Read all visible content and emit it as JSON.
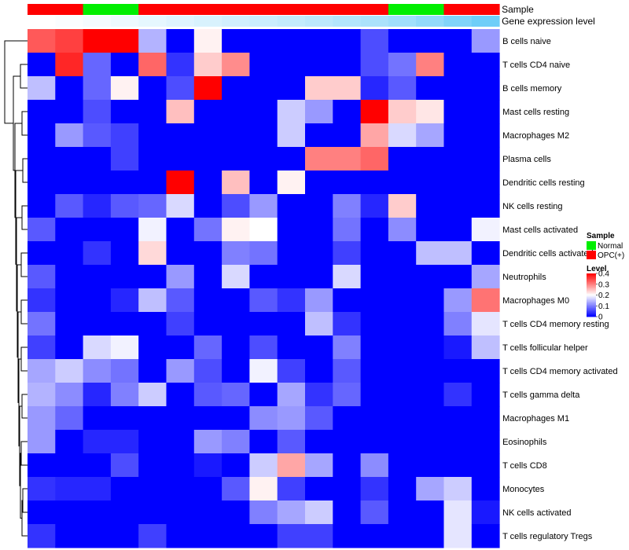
{
  "chart_data": {
    "type": "heatmap",
    "annotation_tracks": [
      {
        "name": "Sample",
        "values": [
          "OPC(+)",
          "OPC(+)",
          "Normal",
          "Normal",
          "OPC(+)",
          "OPC(+)",
          "OPC(+)",
          "OPC(+)",
          "OPC(+)",
          "OPC(+)",
          "OPC(+)",
          "OPC(+)",
          "OPC(+)",
          "Normal",
          "Normal",
          "OPC(+)",
          "OPC(+)"
        ]
      },
      {
        "name": "Gene expression level",
        "values": [
          0.0,
          0.03,
          0.06,
          0.1,
          0.14,
          0.18,
          0.22,
          0.26,
          0.3,
          0.34,
          0.38,
          0.43,
          0.48,
          0.54,
          0.62,
          0.72,
          0.82
        ]
      }
    ],
    "legend_sample": {
      "title": "Sample",
      "entries": [
        {
          "label": "Normal",
          "color": "#00ee00"
        },
        {
          "label": "OPC(+)",
          "color": "#ff0000"
        }
      ]
    },
    "legend_level": {
      "title": "Level",
      "min": 0,
      "max": 0.4,
      "ticks": [
        {
          "value": 0.4,
          "label": "0.4"
        },
        {
          "value": 0.3,
          "label": "0.3"
        },
        {
          "value": 0.2,
          "label": "0.2"
        },
        {
          "value": 0.1,
          "label": "0.1"
        },
        {
          "value": 0,
          "label": "0"
        }
      ],
      "colors": {
        "low": "#0000ff",
        "mid": "#ffffff",
        "high": "#ff0000",
        "mid_value": 0.2
      }
    },
    "rows": [
      "B cells naive",
      "T cells CD4 naive",
      "B cells memory",
      "Mast cells resting",
      "Macrophages M2",
      "Plasma cells",
      "Dendritic cells resting",
      "NK cells resting",
      "Mast cells activated",
      "Dendritic cells activated",
      "Neutrophils",
      "Macrophages M0",
      "T cells CD4 memory resting",
      "T cells follicular helper",
      "T cells CD4 memory activated",
      "T cells gamma delta",
      "Macrophages M1",
      "Eosinophils",
      "T cells CD8",
      "Monocytes",
      "NK cells activated",
      "T cells regulatory  Tregs"
    ],
    "values": [
      [
        0.33,
        0.35,
        0.4,
        0.4,
        0.14,
        0.0,
        0.21,
        0.0,
        0.0,
        0.0,
        0.0,
        0.0,
        0.06,
        0.0,
        0.0,
        0.0,
        0.12
      ],
      [
        0.0,
        0.37,
        0.08,
        0.0,
        0.32,
        0.04,
        0.24,
        0.29,
        0.0,
        0.0,
        0.0,
        0.0,
        0.06,
        0.09,
        0.3,
        0.0,
        0.0
      ],
      [
        0.15,
        0.0,
        0.08,
        0.21,
        0.0,
        0.06,
        0.4,
        0.0,
        0.0,
        0.0,
        0.24,
        0.24,
        0.03,
        0.07,
        0.0,
        0.0,
        0.0
      ],
      [
        0.0,
        0.0,
        0.06,
        0.0,
        0.0,
        0.25,
        0.0,
        0.0,
        0.0,
        0.16,
        0.12,
        0.0,
        0.4,
        0.24,
        0.22,
        0.0,
        0.0
      ],
      [
        0.0,
        0.12,
        0.07,
        0.05,
        0.0,
        0.0,
        0.0,
        0.0,
        0.0,
        0.16,
        0.0,
        0.0,
        0.27,
        0.17,
        0.13,
        0.0,
        0.0
      ],
      [
        0.0,
        0.0,
        0.0,
        0.05,
        0.0,
        0.0,
        0.0,
        0.0,
        0.0,
        0.0,
        0.3,
        0.3,
        0.32,
        0.0,
        0.0,
        0.0,
        0.0
      ],
      [
        0.0,
        0.0,
        0.0,
        0.0,
        0.0,
        0.4,
        0.0,
        0.25,
        0.0,
        0.21,
        0.0,
        0.0,
        0.0,
        0.0,
        0.0,
        0.0,
        0.0
      ],
      [
        0.0,
        0.07,
        0.03,
        0.07,
        0.08,
        0.17,
        0.0,
        0.06,
        0.12,
        0.0,
        0.0,
        0.1,
        0.03,
        0.24,
        0.0,
        0.0,
        0.0
      ],
      [
        0.07,
        0.0,
        0.0,
        0.0,
        0.19,
        0.0,
        0.09,
        0.21,
        0.2,
        0.0,
        0.0,
        0.09,
        0.0,
        0.11,
        0.0,
        0.0,
        0.19
      ],
      [
        0.0,
        0.0,
        0.04,
        0.0,
        0.23,
        0.0,
        0.0,
        0.1,
        0.09,
        0.0,
        0.0,
        0.05,
        0.0,
        0.0,
        0.15,
        0.15,
        0.0
      ],
      [
        0.07,
        0.0,
        0.0,
        0.0,
        0.0,
        0.12,
        0.0,
        0.17,
        0.0,
        0.0,
        0.0,
        0.17,
        0.0,
        0.0,
        0.0,
        0.0,
        0.13
      ],
      [
        0.04,
        0.0,
        0.0,
        0.03,
        0.15,
        0.07,
        0.0,
        0.0,
        0.07,
        0.04,
        0.12,
        0.0,
        0.0,
        0.0,
        0.0,
        0.12,
        0.31
      ],
      [
        0.09,
        0.0,
        0.0,
        0.0,
        0.0,
        0.05,
        0.0,
        0.0,
        0.0,
        0.0,
        0.15,
        0.04,
        0.0,
        0.0,
        0.0,
        0.1,
        0.18
      ],
      [
        0.05,
        0.0,
        0.17,
        0.19,
        0.0,
        0.0,
        0.08,
        0.0,
        0.06,
        0.0,
        0.0,
        0.1,
        0.0,
        0.0,
        0.0,
        0.02,
        0.15
      ],
      [
        0.13,
        0.16,
        0.11,
        0.09,
        0.0,
        0.12,
        0.06,
        0.0,
        0.19,
        0.05,
        0.0,
        0.07,
        0.0,
        0.0,
        0.0,
        0.0,
        0.0
      ],
      [
        0.14,
        0.11,
        0.03,
        0.1,
        0.16,
        0.0,
        0.07,
        0.08,
        0.0,
        0.13,
        0.04,
        0.08,
        0.0,
        0.0,
        0.0,
        0.04,
        0.0
      ],
      [
        0.12,
        0.08,
        0.0,
        0.0,
        0.0,
        0.0,
        0.0,
        0.0,
        0.11,
        0.12,
        0.07,
        0.0,
        0.0,
        0.0,
        0.0,
        0.0,
        0.0
      ],
      [
        0.12,
        0.0,
        0.03,
        0.03,
        0.0,
        0.0,
        0.12,
        0.1,
        0.0,
        0.07,
        0.0,
        0.0,
        0.0,
        0.0,
        0.0,
        0.0,
        0.0
      ],
      [
        0.0,
        0.0,
        0.0,
        0.06,
        0.0,
        0.0,
        0.02,
        0.0,
        0.16,
        0.27,
        0.13,
        0.0,
        0.11,
        0.0,
        0.0,
        0.0,
        0.0
      ],
      [
        0.04,
        0.03,
        0.03,
        0.0,
        0.0,
        0.0,
        0.0,
        0.07,
        0.21,
        0.05,
        0.0,
        0.0,
        0.04,
        0.0,
        0.13,
        0.16,
        0.0
      ],
      [
        0.0,
        0.0,
        0.0,
        0.0,
        0.0,
        0.0,
        0.0,
        0.0,
        0.1,
        0.13,
        0.16,
        0.0,
        0.07,
        0.0,
        0.0,
        0.18,
        0.02
      ],
      [
        0.04,
        0.0,
        0.0,
        0.0,
        0.05,
        0.0,
        0.0,
        0.0,
        0.0,
        0.05,
        0.05,
        0.0,
        0.0,
        0.0,
        0.0,
        0.18,
        0.0
      ]
    ],
    "row_dendrogram": true,
    "column_dendrogram": false,
    "legend_placement": "right"
  }
}
